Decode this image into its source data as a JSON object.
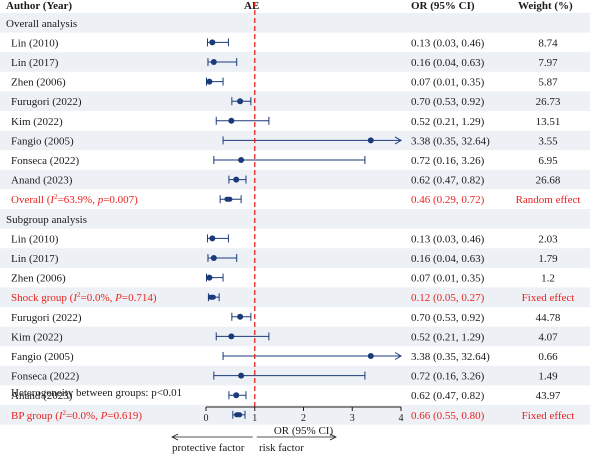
{
  "headers": {
    "author": "Author (Year)",
    "ae": "AE",
    "or": "OR (95% CI)",
    "weight": "Weight (%)"
  },
  "footnote": "Heterogeneity between groups: p<0.01",
  "x_axis": {
    "label": "OR (95% CI)",
    "ticks": [
      "0",
      "1",
      "2",
      "3",
      "4"
    ],
    "left_arrow_label": "protective factor",
    "right_arrow_label": "risk factor"
  },
  "colors": {
    "point": "#1b3a7a",
    "summary": "#1b3a7a",
    "highlight_text": "#e8231f",
    "ref_line": "#e8231f",
    "stripe": "#edf1f6"
  },
  "rows": [
    {
      "type": "section",
      "label": "Overall analysis"
    },
    {
      "type": "study",
      "label": "Lin (2010)",
      "or": 0.13,
      "lo": 0.03,
      "hi": 0.46,
      "ci_text": "0.13 (0.03, 0.46)",
      "weight": "8.74"
    },
    {
      "type": "study",
      "label": "Lin (2017)",
      "or": 0.16,
      "lo": 0.04,
      "hi": 0.63,
      "ci_text": "0.16 (0.04, 0.63)",
      "weight": "7.97"
    },
    {
      "type": "study",
      "label": "Zhen (2006)",
      "or": 0.07,
      "lo": 0.01,
      "hi": 0.35,
      "ci_text": "0.07 (0.01, 0.35)",
      "weight": "5.87"
    },
    {
      "type": "study",
      "label": "Furugori (2022)",
      "or": 0.7,
      "lo": 0.53,
      "hi": 0.92,
      "ci_text": "0.70 (0.53, 0.92)",
      "weight": "26.73"
    },
    {
      "type": "study",
      "label": "Kim (2022)",
      "or": 0.52,
      "lo": 0.21,
      "hi": 1.29,
      "ci_text": "0.52 (0.21, 1.29)",
      "weight": "13.51"
    },
    {
      "type": "study",
      "label": "Fangio (2005)",
      "or": 3.38,
      "lo": 0.35,
      "hi": 32.64,
      "ci_text": "3.38 (0.35, 32.64)",
      "weight": "3.55"
    },
    {
      "type": "study",
      "label": "Fonseca (2022)",
      "or": 0.72,
      "lo": 0.16,
      "hi": 3.26,
      "ci_text": "0.72 (0.16, 3.26)",
      "weight": "6.95"
    },
    {
      "type": "study",
      "label": "Anand (2023)",
      "or": 0.62,
      "lo": 0.47,
      "hi": 0.82,
      "ci_text": "0.62 (0.47, 0.82)",
      "weight": "26.68"
    },
    {
      "type": "summary",
      "label_parts": [
        "Overall (",
        {
          "sup_i": "2"
        },
        "=63.9%, ",
        {
          "it": "p"
        },
        "=0.007)"
      ],
      "or": 0.46,
      "lo": 0.29,
      "hi": 0.72,
      "ci_text": "0.46 (0.29, 0.72)",
      "weight": "Random effect"
    },
    {
      "type": "section",
      "label": "Subgroup analysis"
    },
    {
      "type": "study",
      "label": "Lin (2010)",
      "or": 0.13,
      "lo": 0.03,
      "hi": 0.46,
      "ci_text": "0.13 (0.03, 0.46)",
      "weight": "2.03"
    },
    {
      "type": "study",
      "label": "Lin (2017)",
      "or": 0.16,
      "lo": 0.04,
      "hi": 0.63,
      "ci_text": "0.16 (0.04, 0.63)",
      "weight": "1.79"
    },
    {
      "type": "study",
      "label": "Zhen (2006)",
      "or": 0.07,
      "lo": 0.01,
      "hi": 0.35,
      "ci_text": "0.07 (0.01, 0.35)",
      "weight": "1.2"
    },
    {
      "type": "summary",
      "label_parts": [
        "Shock group (",
        {
          "sup_i": "2"
        },
        "=0.0%, ",
        {
          "it": "P"
        },
        "=0.714)"
      ],
      "or": 0.12,
      "lo": 0.05,
      "hi": 0.27,
      "ci_text": "0.12 (0.05, 0.27)",
      "weight": "Fixed effect"
    },
    {
      "type": "study",
      "label": "Furugori (2022)",
      "or": 0.7,
      "lo": 0.53,
      "hi": 0.92,
      "ci_text": "0.70 (0.53, 0.92)",
      "weight": "44.78"
    },
    {
      "type": "study",
      "label": "Kim (2022)",
      "or": 0.52,
      "lo": 0.21,
      "hi": 1.29,
      "ci_text": "0.52 (0.21, 1.29)",
      "weight": "4.07"
    },
    {
      "type": "study",
      "label": "Fangio (2005)",
      "or": 3.38,
      "lo": 0.35,
      "hi": 32.64,
      "ci_text": "3.38 (0.35, 32.64)",
      "weight": "0.66"
    },
    {
      "type": "study",
      "label": "Fonseca (2022)",
      "or": 0.72,
      "lo": 0.16,
      "hi": 3.26,
      "ci_text": "0.72 (0.16, 3.26)",
      "weight": "1.49"
    },
    {
      "type": "study",
      "label": "Anand (2023)",
      "or": 0.62,
      "lo": 0.47,
      "hi": 0.82,
      "ci_text": "0.62 (0.47, 0.82)",
      "weight": "43.97"
    },
    {
      "type": "summary",
      "label_parts": [
        "BP group (",
        {
          "sup_i": "2"
        },
        "=0.0%, ",
        {
          "it": "P"
        },
        "=0.619)"
      ],
      "or": 0.66,
      "lo": 0.55,
      "hi": 0.8,
      "ci_text": "0.66 (0.55, 0.80)",
      "weight": "Fixed effect"
    }
  ],
  "chart_data": {
    "type": "scatter",
    "xlabel": "OR (95% CI)",
    "xlim": [
      0,
      4
    ],
    "reference_line": 1,
    "series": [
      {
        "name": "Overall analysis",
        "points": [
          {
            "label": "Lin (2010)",
            "x": 0.13,
            "lo": 0.03,
            "hi": 0.46
          },
          {
            "label": "Lin (2017)",
            "x": 0.16,
            "lo": 0.04,
            "hi": 0.63
          },
          {
            "label": "Zhen (2006)",
            "x": 0.07,
            "lo": 0.01,
            "hi": 0.35
          },
          {
            "label": "Furugori (2022)",
            "x": 0.7,
            "lo": 0.53,
            "hi": 0.92
          },
          {
            "label": "Kim (2022)",
            "x": 0.52,
            "lo": 0.21,
            "hi": 1.29
          },
          {
            "label": "Fangio (2005)",
            "x": 3.38,
            "lo": 0.35,
            "hi": 32.64
          },
          {
            "label": "Fonseca (2022)",
            "x": 0.72,
            "lo": 0.16,
            "hi": 3.26
          },
          {
            "label": "Anand (2023)",
            "x": 0.62,
            "lo": 0.47,
            "hi": 0.82
          },
          {
            "label": "Overall",
            "x": 0.46,
            "lo": 0.29,
            "hi": 0.72
          }
        ]
      },
      {
        "name": "Subgroup analysis",
        "points": [
          {
            "label": "Lin (2010)",
            "x": 0.13,
            "lo": 0.03,
            "hi": 0.46
          },
          {
            "label": "Lin (2017)",
            "x": 0.16,
            "lo": 0.04,
            "hi": 0.63
          },
          {
            "label": "Zhen (2006)",
            "x": 0.07,
            "lo": 0.01,
            "hi": 0.35
          },
          {
            "label": "Shock group",
            "x": 0.12,
            "lo": 0.05,
            "hi": 0.27
          },
          {
            "label": "Furugori (2022)",
            "x": 0.7,
            "lo": 0.53,
            "hi": 0.92
          },
          {
            "label": "Kim (2022)",
            "x": 0.52,
            "lo": 0.21,
            "hi": 1.29
          },
          {
            "label": "Fangio (2005)",
            "x": 3.38,
            "lo": 0.35,
            "hi": 32.64
          },
          {
            "label": "Fonseca (2022)",
            "x": 0.72,
            "lo": 0.16,
            "hi": 3.26
          },
          {
            "label": "Anand (2023)",
            "x": 0.62,
            "lo": 0.47,
            "hi": 0.82
          },
          {
            "label": "BP group",
            "x": 0.66,
            "lo": 0.55,
            "hi": 0.8
          }
        ]
      }
    ]
  }
}
